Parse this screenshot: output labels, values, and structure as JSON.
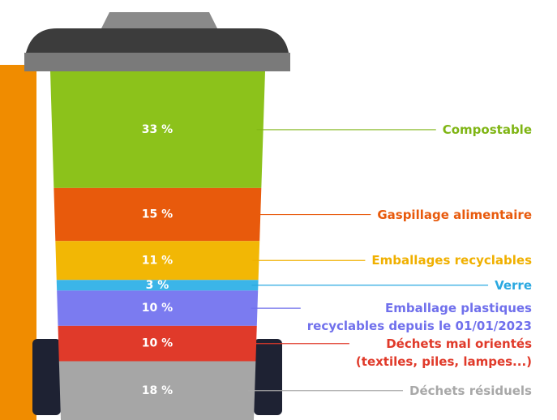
{
  "chart_data": {
    "type": "bin",
    "categories": [
      "Compostable",
      "Gaspillage alimentaire",
      "Emballages recyclables",
      "Verre",
      "Emballage plastiques\nrecyclables depuis le 01/01/2023",
      "Déchets mal orientés\n(textiles, piles, lampes...)",
      "Déchets résiduels"
    ],
    "values": [
      33,
      15,
      11,
      3,
      10,
      10,
      18
    ],
    "value_labels": [
      "33 %",
      "15 %",
      "11 %",
      "3 %",
      "10 %",
      "10 %",
      "18 %"
    ],
    "colors": [
      "#8cc21b",
      "#e85a0c",
      "#f2b705",
      "#3bb5e8",
      "#7b7bf0",
      "#e03a2a",
      "#a6a6a6"
    ],
    "label_colors": [
      "#7fb514",
      "#e85a0c",
      "#f0b000",
      "#2aa8e0",
      "#7070ec",
      "#e03a2a",
      "#a8a8a8"
    ]
  }
}
